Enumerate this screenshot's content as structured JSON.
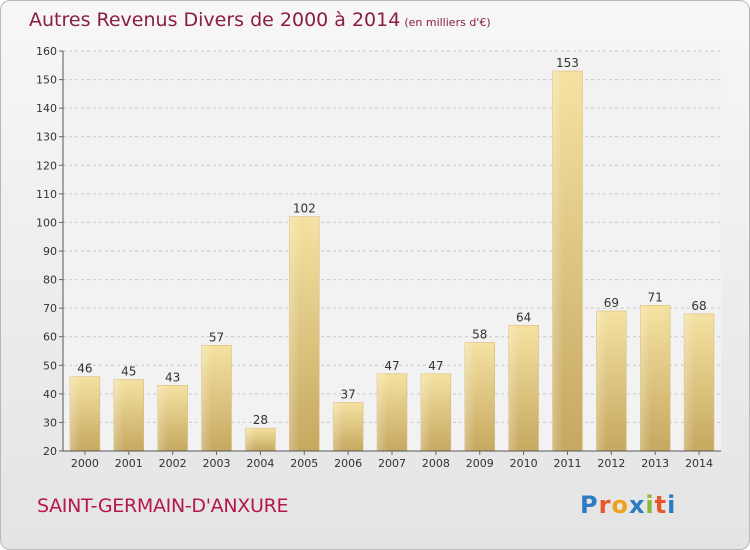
{
  "header": {
    "title": "Autres Revenus Divers de 2000 à 2014",
    "unit": "(en milliers d'€)"
  },
  "footer": {
    "commune": "SAINT-GERMAIN-D'ANXURE"
  },
  "logo": {
    "text": "Proxiti",
    "letter_colors": [
      "#2e7bc4",
      "#e8562a",
      "#f0a11c",
      "#2e7bc4",
      "#8ab83a",
      "#e8562a",
      "#2e7bc4"
    ]
  },
  "chart_data": {
    "type": "bar",
    "title": "Autres Revenus Divers de 2000 à 2014",
    "subtitle": "(en milliers d'€)",
    "categories": [
      "2000",
      "2001",
      "2002",
      "2003",
      "2004",
      "2005",
      "2006",
      "2007",
      "2008",
      "2009",
      "2010",
      "2011",
      "2012",
      "2013",
      "2014"
    ],
    "values": [
      46,
      45,
      43,
      57,
      28,
      102,
      37,
      47,
      47,
      58,
      64,
      153,
      69,
      71,
      68
    ],
    "ylim": [
      20,
      160
    ],
    "yticks": [
      20,
      30,
      40,
      50,
      60,
      70,
      80,
      90,
      100,
      110,
      120,
      130,
      140,
      150,
      160
    ],
    "grid": true,
    "legend": "none",
    "bar_color": "#e8cf88",
    "label_color": "#333333"
  }
}
